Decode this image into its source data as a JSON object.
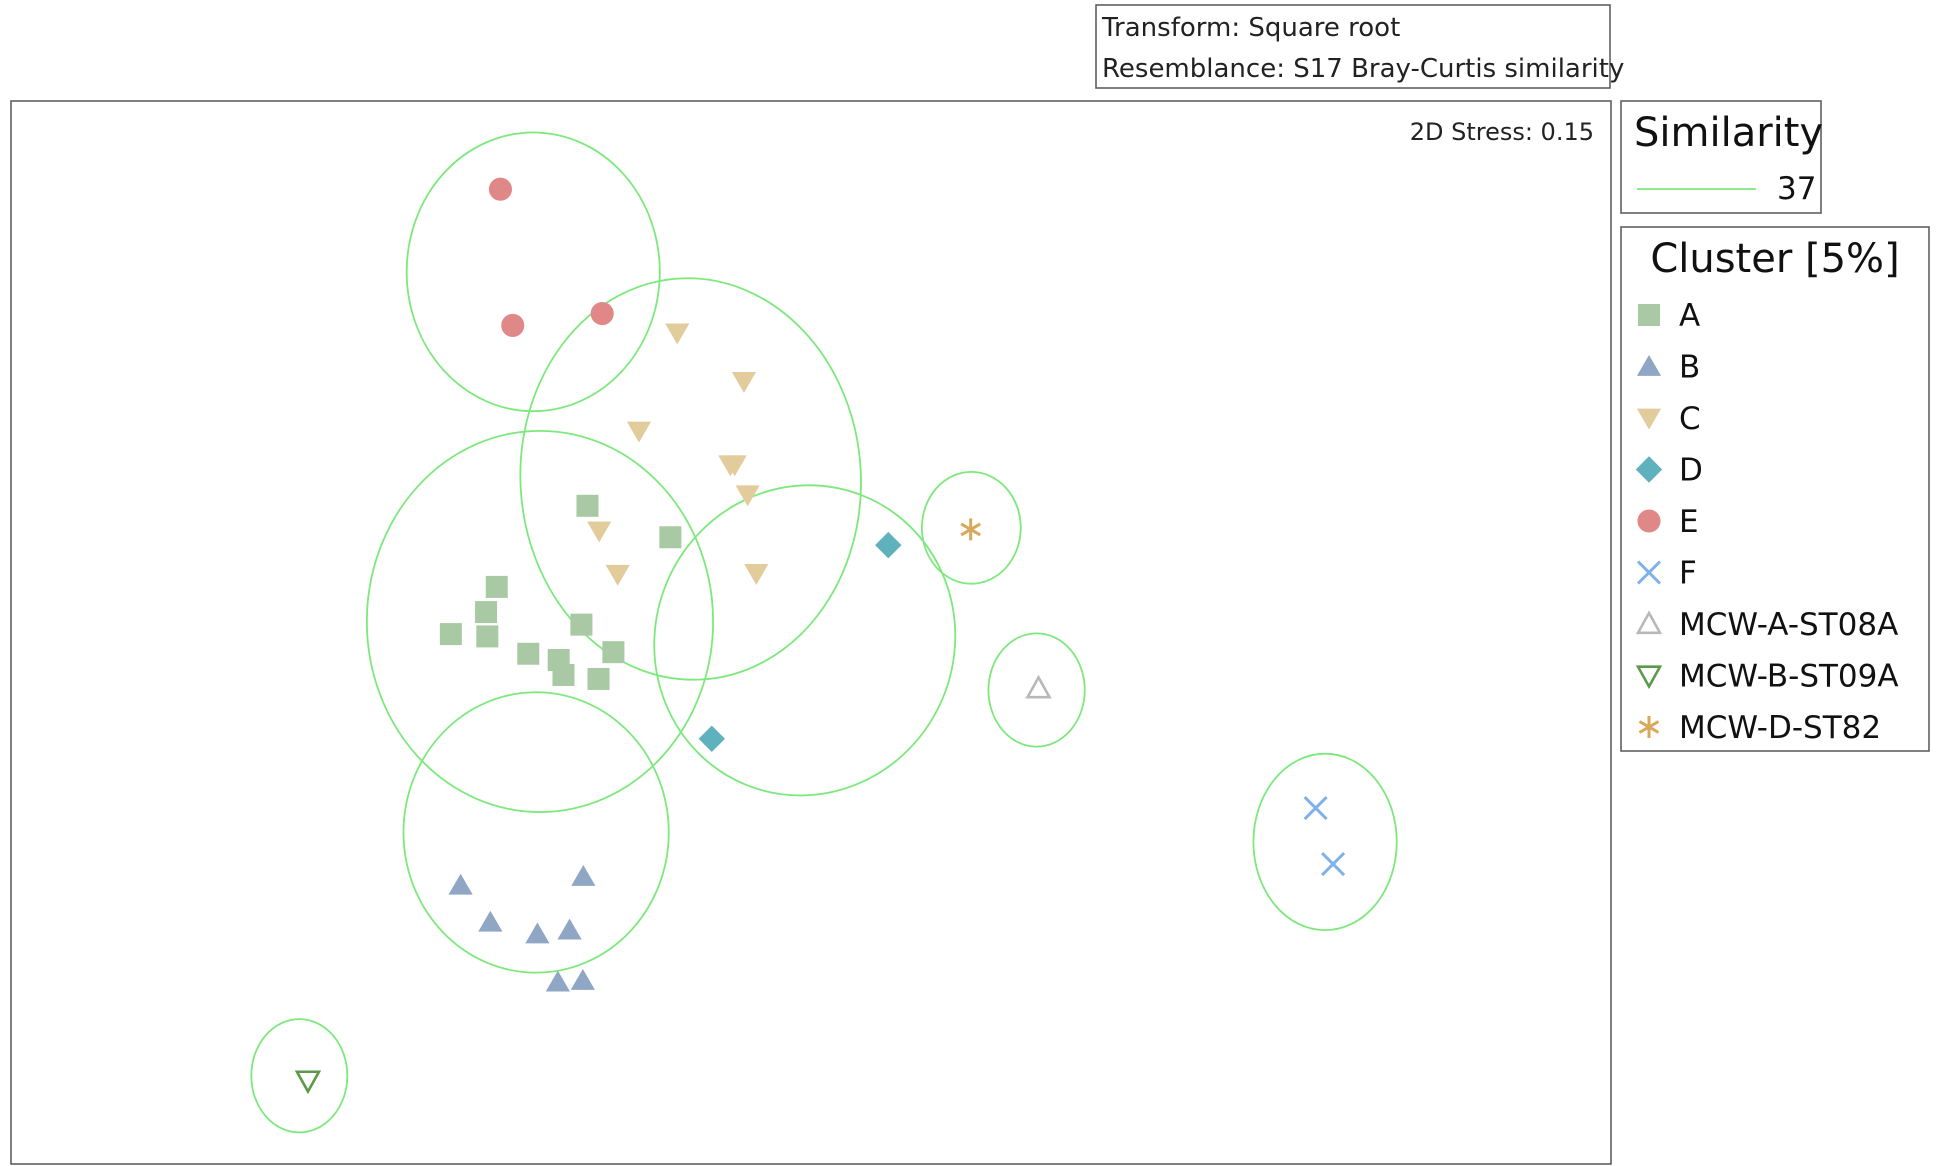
{
  "info_box": {
    "transform": "Transform: Square root",
    "resemblance": "Resemblance: S17 Bray-Curtis similarity"
  },
  "stress_label": "2D Stress: 0.15",
  "similarity_legend": {
    "title": "Similarity",
    "value": "37",
    "line_color": "#7de87d"
  },
  "cluster_legend": {
    "title": "Cluster [5%]",
    "entries": [
      {
        "label": "A",
        "shape": "square",
        "color": "#a9c9a4"
      },
      {
        "label": "B",
        "shape": "triangle-up",
        "color": "#8fa6c4"
      },
      {
        "label": "C",
        "shape": "triangle-down",
        "color": "#e3cc9b"
      },
      {
        "label": "D",
        "shape": "diamond",
        "color": "#5fb2bd"
      },
      {
        "label": "E",
        "shape": "circle",
        "color": "#e08888"
      },
      {
        "label": "F",
        "shape": "x",
        "color": "#7fb2ea"
      },
      {
        "label": "MCW-A-ST08A",
        "shape": "triangle-up-open",
        "color": "#b8b8b8"
      },
      {
        "label": "MCW-B-ST09A",
        "shape": "triangle-down-open",
        "color": "#5a9a4a"
      },
      {
        "label": "MCW-D-ST82",
        "shape": "asterisk",
        "color": "#d9a85a"
      }
    ]
  },
  "chart_data": {
    "type": "scatter",
    "title": "",
    "xlabel": "",
    "ylabel": "",
    "xlim": [
      0,
      1000
    ],
    "ylim": [
      0,
      1000
    ],
    "grid": false,
    "legend_placement": "right",
    "series": [
      {
        "name": "A",
        "points": [
          [
            360.3,
            619.2
          ],
          [
            303.6,
            542.9
          ],
          [
            296.9,
            519.2
          ],
          [
            274.9,
            498.5
          ],
          [
            297.7,
            496.3
          ],
          [
            412.1,
            589.6
          ],
          [
            356.5,
            507.4
          ],
          [
            323.3,
            480.0
          ],
          [
            342.3,
            474.1
          ],
          [
            345.3,
            460.0
          ],
          [
            376.5,
            481.5
          ],
          [
            367.2,
            456.3
          ]
        ]
      },
      {
        "name": "B",
        "points": [
          [
            281.0,
            262.2
          ],
          [
            357.7,
            270.4
          ],
          [
            299.6,
            227.4
          ],
          [
            329.0,
            216.3
          ],
          [
            349.1,
            220.0
          ],
          [
            341.8,
            171.1
          ],
          [
            357.4,
            172.6
          ]
        ]
      },
      {
        "name": "C",
        "points": [
          [
            416.4,
            781.9
          ],
          [
            458.1,
            736.3
          ],
          [
            392.5,
            689.6
          ],
          [
            449.6,
            657.8
          ],
          [
            460.4,
            629.6
          ],
          [
            367.6,
            595.6
          ],
          [
            379.2,
            554.8
          ],
          [
            465.8,
            555.6
          ],
          [
            452.3,
            657.8
          ]
        ]
      },
      {
        "name": "D",
        "points": [
          [
            548.3,
            582.2
          ],
          [
            438.0,
            400.0
          ]
        ]
      },
      {
        "name": "E",
        "points": [
          [
            305.9,
            917.0
          ],
          [
            313.6,
            788.9
          ],
          [
            369.5,
            800.0
          ]
        ]
      },
      {
        "name": "F",
        "points": [
          [
            815.4,
            334.8
          ],
          [
            826.3,
            282.2
          ]
        ]
      },
      {
        "name": "MCW-A-ST08A",
        "points": [
          [
            642.2,
            447.4
          ]
        ]
      },
      {
        "name": "MCW-B-ST09A",
        "points": [
          [
            185.6,
            78.5
          ]
        ]
      },
      {
        "name": "MCW-D-ST82",
        "points": [
          [
            599.8,
            597.0
          ]
        ]
      }
    ],
    "similarity_contours": [
      {
        "cx": 326.4,
        "cy": 839.3,
        "rx": 79.1,
        "ry": 131.1
      },
      {
        "cx": 424.8,
        "cy": 644.4,
        "rx": 106.4,
        "ry": 188.9,
        "rotate": -3
      },
      {
        "cx": 330.6,
        "cy": 510.4,
        "rx": 108.2,
        "ry": 179.3
      },
      {
        "cx": 496.1,
        "cy": 492.6,
        "rx": 93.5,
        "ry": 146.7,
        "rotate": 22
      },
      {
        "cx": 600.2,
        "cy": 598.5,
        "rx": 30.9,
        "ry": 52.6
      },
      {
        "cx": 641.0,
        "cy": 445.9,
        "rx": 30.1,
        "ry": 53.3
      },
      {
        "cx": 328.2,
        "cy": 311.9,
        "rx": 82.9,
        "ry": 131.9
      },
      {
        "cx": 821.3,
        "cy": 303.0,
        "rx": 44.8,
        "ry": 83.0
      },
      {
        "cx": 180.2,
        "cy": 83.0,
        "rx": 30.0,
        "ry": 53.3
      }
    ]
  }
}
